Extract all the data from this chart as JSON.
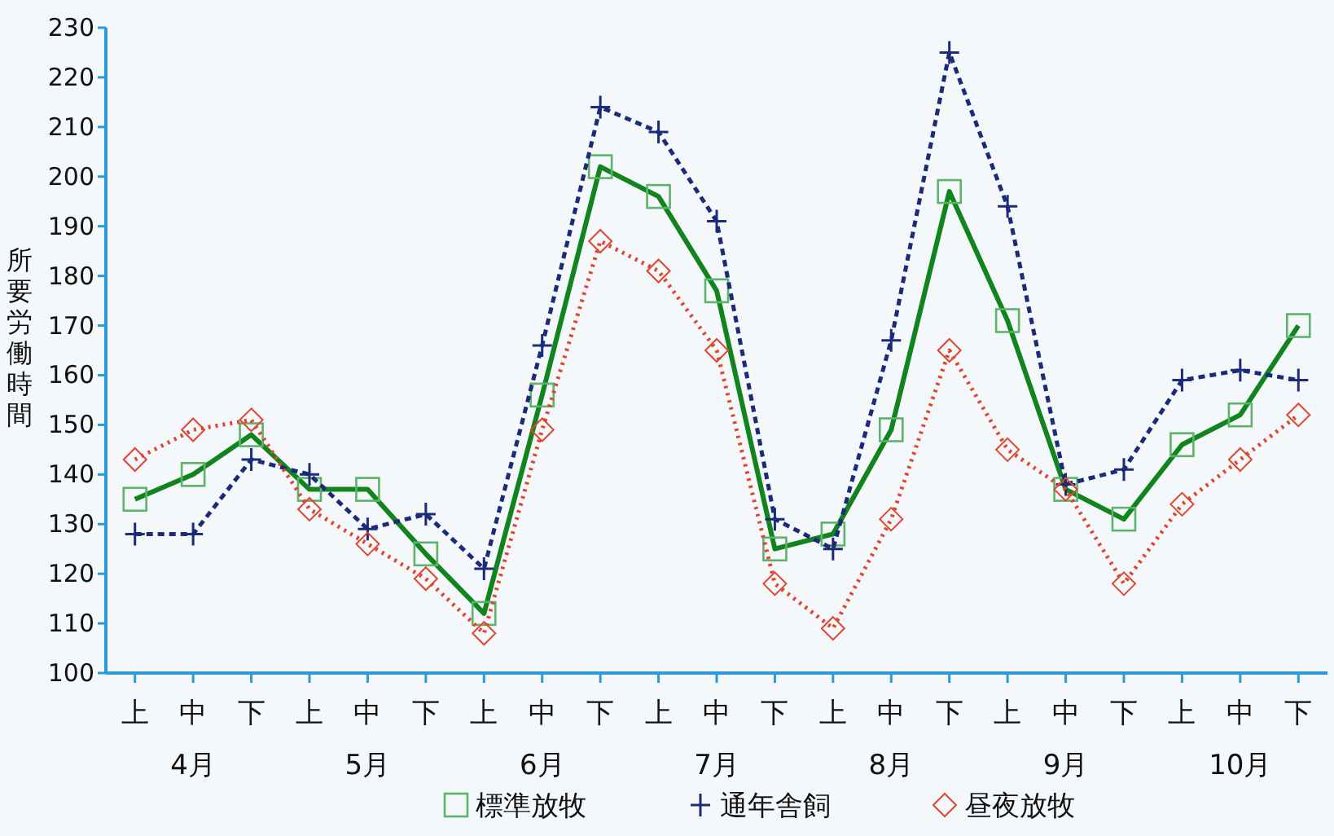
{
  "chart_data": {
    "type": "line",
    "ylabel": "所要労働時間",
    "categories": [
      "上",
      "中",
      "下",
      "上",
      "中",
      "下",
      "上",
      "中",
      "下",
      "上",
      "中",
      "下",
      "上",
      "中",
      "下",
      "上",
      "中",
      "下",
      "上",
      "中",
      "下"
    ],
    "annotations": [
      "4月",
      "5月",
      "6月",
      "7月",
      "8月",
      "9月",
      "10月"
    ],
    "series": [
      {
        "name": "標準放牧",
        "color": "#12841e",
        "marker": "square",
        "line_style": "solid",
        "values": [
          135,
          140,
          148,
          137,
          137,
          124,
          112,
          156,
          202,
          196,
          177,
          125,
          128,
          149,
          197,
          171,
          137,
          131,
          146,
          152,
          170
        ]
      },
      {
        "name": "通年舎飼",
        "color": "#1c2a7a",
        "marker": "cross",
        "line_style": "dashed",
        "values": [
          128,
          128,
          143,
          140,
          129,
          132,
          121,
          166,
          214,
          209,
          191,
          131,
          125,
          167,
          225,
          194,
          138,
          141,
          159,
          161,
          159
        ]
      },
      {
        "name": "昼夜放牧",
        "color": "#e0462e",
        "marker": "diamond",
        "line_style": "dotted",
        "values": [
          143,
          149,
          151,
          133,
          126,
          119,
          108,
          149,
          187,
          181,
          165,
          118,
          109,
          131,
          165,
          145,
          137,
          118,
          134,
          143,
          152
        ]
      }
    ],
    "ylim": [
      100,
      230
    ],
    "yticks": [
      100,
      110,
      120,
      130,
      140,
      150,
      160,
      170,
      180,
      190,
      200,
      210,
      220,
      230
    ],
    "grid": false,
    "legend": "bottom"
  }
}
